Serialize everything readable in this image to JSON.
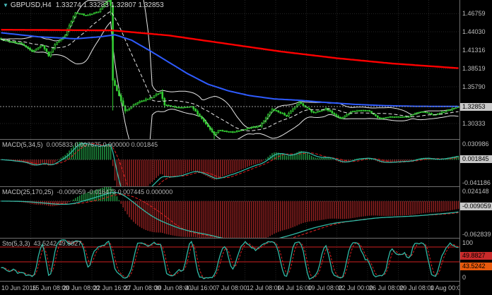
{
  "header": {
    "arrow_icon": "▼",
    "symbol_period": "GBPUSD,H4",
    "ohlc": "1.33274 1.33283 1.32807 1.32853"
  },
  "colors": {
    "background": "#000000",
    "grid": "#262626",
    "separator": "#6F6F6F",
    "candle": "#33CC33",
    "bollinger": "#E8E8E8",
    "ma_mid": "#2E5BFF",
    "ma_slow": "#FF0000",
    "price_line": "#9A9A9A",
    "price_badge_bg": "#C8C8C8",
    "macd_pos": "#1E8E3E",
    "macd_neg": "#8E2020",
    "macd_line": "#2FB9A5",
    "signal_line": "#E02020",
    "level_line": "#D02020",
    "axis_text": "#BDBDBD",
    "sto_badge_k": "#E8590C",
    "sto_badge_d": "#C92A2A"
  },
  "chart_data": {
    "type": "candlestick",
    "symbol": "GBPUSD",
    "timeframe": "H4",
    "n_candles": 222,
    "x_axis": {
      "labels": [
        "10 Jun 2016",
        "15 Jun 08:00",
        "20 Jun 08:00",
        "22 Jun 16:00",
        "27 Jun 08:00",
        "30 Jun 08:00",
        "4 Jul 16:00",
        "7 Jul 08:00",
        "12 Jul 08:00",
        "14 Jul 16:00",
        "19 Jul 08:00",
        "22 Jul 00:00",
        "26 Jul 08:00",
        "29 Jul 08:00",
        "1 Aug 00:00"
      ]
    },
    "main": {
      "ylim": [
        1.28,
        1.488
      ],
      "price_ticks": [
        "1.46759",
        "1.44030",
        "1.41316",
        "1.38519",
        "1.35790",
        "1.30333"
      ],
      "current_price": 1.32853,
      "current_price_label": "1.32853",
      "close_keyframes": [
        [
          0,
          1.429
        ],
        [
          5,
          1.4255
        ],
        [
          10,
          1.4227
        ],
        [
          15,
          1.411
        ],
        [
          20,
          1.42
        ],
        [
          23,
          1.405
        ],
        [
          26,
          1.421
        ],
        [
          31,
          1.4358
        ],
        [
          36,
          1.4694
        ],
        [
          41,
          1.465
        ],
        [
          47,
          1.47
        ],
        [
          50,
          1.482
        ],
        [
          52,
          1.4877
        ],
        [
          53,
          1.48
        ],
        [
          54,
          1.368
        ],
        [
          57,
          1.345
        ],
        [
          60,
          1.3222
        ],
        [
          66,
          1.3345
        ],
        [
          73,
          1.3427
        ],
        [
          77,
          1.35
        ],
        [
          79,
          1.3311
        ],
        [
          86,
          1.3267
        ],
        [
          92,
          1.329
        ],
        [
          99,
          1.3024
        ],
        [
          103,
          1.287
        ],
        [
          105,
          1.2931
        ],
        [
          112,
          1.2905
        ],
        [
          118,
          1.2952
        ],
        [
          125,
          1.2996
        ],
        [
          131,
          1.3248
        ],
        [
          138,
          1.3148
        ],
        [
          144,
          1.3346
        ],
        [
          151,
          1.3193
        ],
        [
          157,
          1.3253
        ],
        [
          164,
          1.3103
        ],
        [
          170,
          1.3217
        ],
        [
          177,
          1.323
        ],
        [
          183,
          1.3106
        ],
        [
          190,
          1.3137
        ],
        [
          196,
          1.3131
        ],
        [
          203,
          1.3213
        ],
        [
          209,
          1.316
        ],
        [
          216,
          1.323
        ],
        [
          221,
          1.3285
        ]
      ],
      "special_candles": {
        "53": {
          "o": 1.4877,
          "h": 1.5018,
          "l": 1.465,
          "c": 1.48
        },
        "54": {
          "o": 1.48,
          "h": 1.482,
          "l": 1.3228,
          "c": 1.368
        },
        "103": {
          "l": 1.2798
        }
      },
      "overlays": {
        "ma_slow_red": {
          "keyframes": [
            [
              0,
              1.4435
            ],
            [
              27,
              1.443
            ],
            [
              54,
              1.4425
            ],
            [
              81,
              1.435
            ],
            [
              108,
              1.423
            ],
            [
              135,
              1.411
            ],
            [
              162,
              1.401
            ],
            [
              189,
              1.393
            ],
            [
              221,
              1.386
            ]
          ]
        },
        "ma_mid_blue": {
          "keyframes": [
            [
              0,
              1.439
            ],
            [
              18,
              1.433
            ],
            [
              36,
              1.43
            ],
            [
              48,
              1.433
            ],
            [
              55,
              1.436
            ],
            [
              63,
              1.428
            ],
            [
              72,
              1.412
            ],
            [
              81,
              1.395
            ],
            [
              90,
              1.378
            ],
            [
              100,
              1.362
            ],
            [
              110,
              1.352
            ],
            [
              120,
              1.345
            ],
            [
              132,
              1.34
            ],
            [
              144,
              1.338
            ],
            [
              156,
              1.335
            ],
            [
              170,
              1.332
            ],
            [
              185,
              1.33
            ],
            [
              200,
              1.329
            ],
            [
              221,
              1.3288
            ]
          ]
        },
        "bollinger": {
          "period": 20,
          "deviation": 2
        }
      }
    },
    "macd_fast": {
      "name": "MACD(5,34,5)",
      "values_text": "0.005833 0.007675 0.000000 0.001845",
      "params": [
        5,
        34,
        5
      ],
      "ylim": [
        -0.0412,
        0.031
      ],
      "ticks": [
        {
          "text": "0.030986",
          "value": 0.030986
        },
        {
          "text": "-0.041186",
          "value": -0.041186
        }
      ],
      "badge": {
        "text": "0.001845",
        "value": 0.001845
      }
    },
    "macd_slow": {
      "name": "MACD(25,170,25)",
      "values_text": "-0.009059 -0.016473 0.007445 0.000000",
      "params": [
        25,
        170,
        25
      ],
      "ylim": [
        -0.0628,
        0.0241
      ],
      "ticks": [
        {
          "text": "0.024148",
          "value": 0.024148
        },
        {
          "text": "-0.062839",
          "value": -0.062839
        }
      ],
      "badge": {
        "text": "-0.009059",
        "value": -0.009059
      }
    },
    "stochastic": {
      "name": "Sto(5,3,3)",
      "values_text": "43.5242 49.8827",
      "params": [
        5,
        3,
        3
      ],
      "ylim": [
        0,
        100
      ],
      "levels": [
        80,
        45
      ],
      "ticks": [
        {
          "text": "100",
          "value": 100
        },
        {
          "text": "0",
          "value": 0
        }
      ],
      "badges": [
        {
          "text": "49.8827",
          "value": 49.8827,
          "which": "d"
        },
        {
          "text": "43.5242",
          "value": 43.5242,
          "which": "k"
        }
      ]
    }
  }
}
